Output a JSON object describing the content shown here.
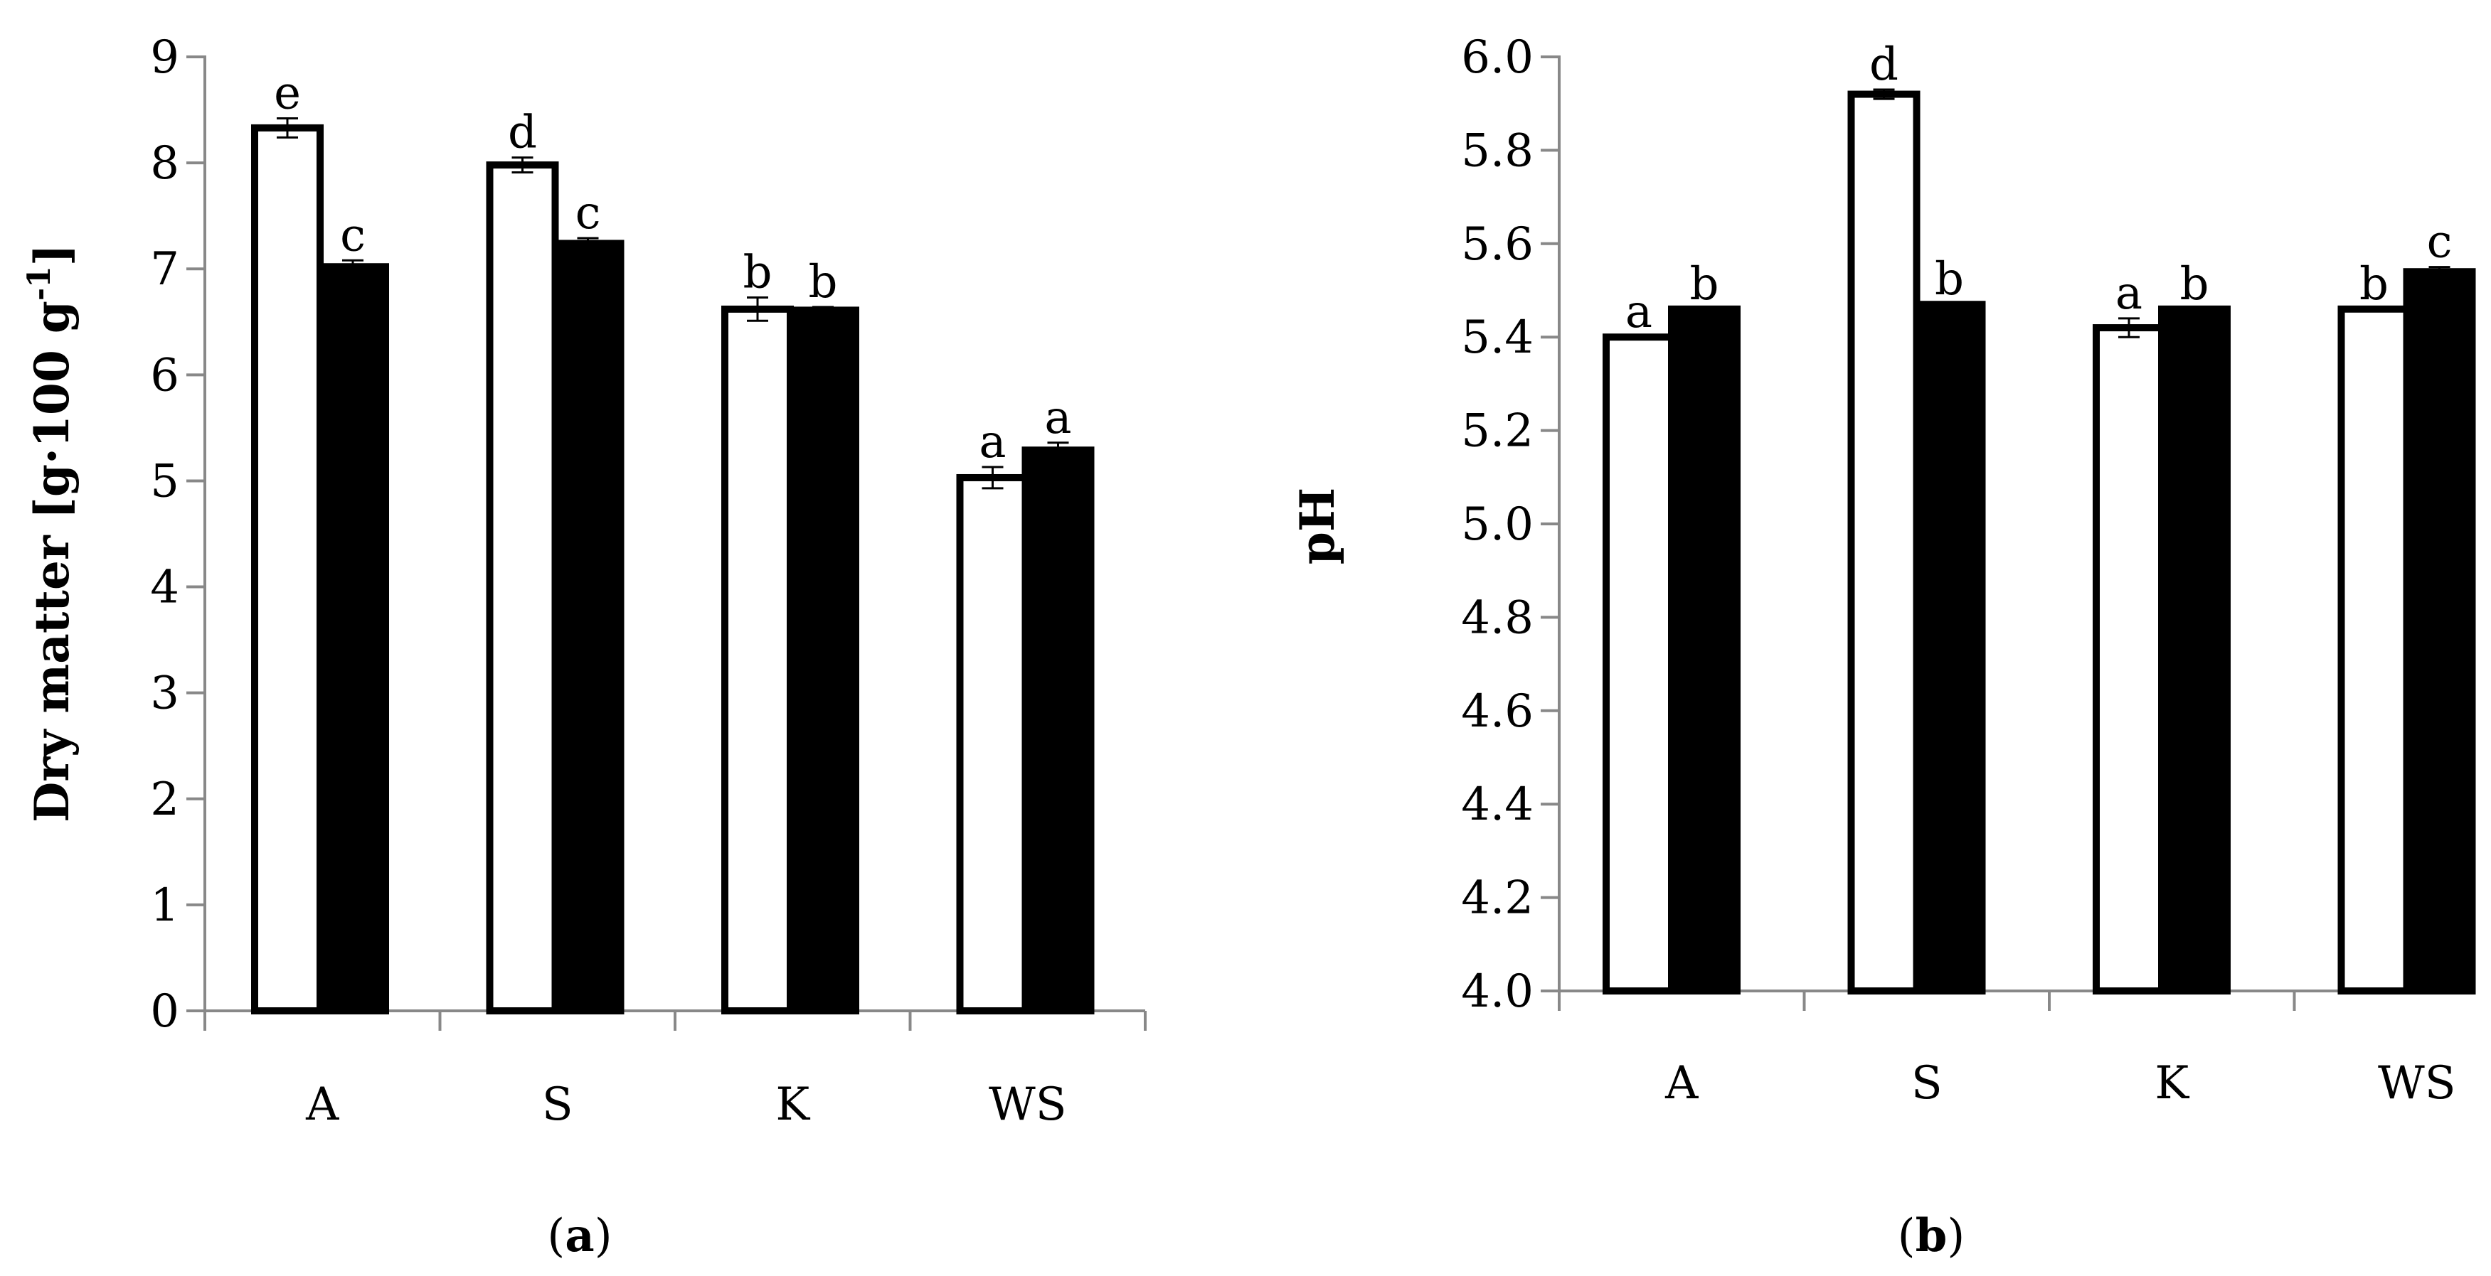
{
  "chart_data": [
    {
      "type": "bar",
      "panel": "a",
      "categories": [
        "A",
        "S",
        "K",
        "WS"
      ],
      "series": [
        {
          "name": "white",
          "fill": "#ffffff",
          "values": [
            8.33,
            7.98,
            6.62,
            5.03
          ],
          "errors": [
            0.09,
            0.07,
            0.11,
            0.1
          ]
        },
        {
          "name": "black",
          "fill": "#000000",
          "values": [
            7.02,
            7.24,
            6.61,
            5.29
          ],
          "errors": [
            0.06,
            0.05,
            0.03,
            0.07
          ]
        }
      ],
      "significance": [
        [
          "e",
          "d",
          "b",
          "a"
        ],
        [
          "c",
          "c",
          "b",
          "a"
        ]
      ],
      "ylim": [
        0,
        9
      ],
      "yticks": [
        0,
        1,
        2,
        3,
        4,
        5,
        6,
        7,
        8,
        9
      ],
      "ytick_labels": [
        "0",
        "1",
        "2",
        "3",
        "4",
        "5",
        "6",
        "7",
        "8",
        "9"
      ],
      "ylabel_main": "Dry  matter [g·100 g",
      "ylabel_sup": "-1",
      "ylabel_end": "]",
      "xlabel": "",
      "panel_label": {
        "open": "(",
        "letter": "a",
        "close": ")"
      }
    },
    {
      "type": "bar",
      "panel": "b",
      "categories": [
        "A",
        "S",
        "K",
        "WS"
      ],
      "series": [
        {
          "name": "white",
          "fill": "#ffffff",
          "values": [
            5.4,
            5.92,
            5.42,
            5.46
          ],
          "errors": [
            0.0,
            0.01,
            0.02,
            0.0
          ]
        },
        {
          "name": "black",
          "fill": "#000000",
          "values": [
            5.46,
            5.47,
            5.46,
            5.54
          ],
          "errors": [
            0.0,
            0.0,
            0.0,
            0.01
          ]
        }
      ],
      "significance": [
        [
          "a",
          "d",
          "a",
          "b"
        ],
        [
          "b",
          "b",
          "b",
          "c"
        ]
      ],
      "ylim": [
        4.0,
        6.0
      ],
      "yticks": [
        4.0,
        4.2,
        4.4,
        4.6,
        4.8,
        5.0,
        5.2,
        5.4,
        5.6,
        5.8,
        6.0
      ],
      "ytick_labels": [
        "4.0",
        "4.2",
        "4.4",
        "4.6",
        "4.8",
        "5.0",
        "5.2",
        "5.4",
        "5.6",
        "5.8",
        "6.0"
      ],
      "ylabel_main": "pH",
      "ylabel_sup": "",
      "ylabel_end": "",
      "xlabel": "",
      "panel_label": {
        "open": "(",
        "letter": "b",
        "close": ")"
      }
    }
  ]
}
